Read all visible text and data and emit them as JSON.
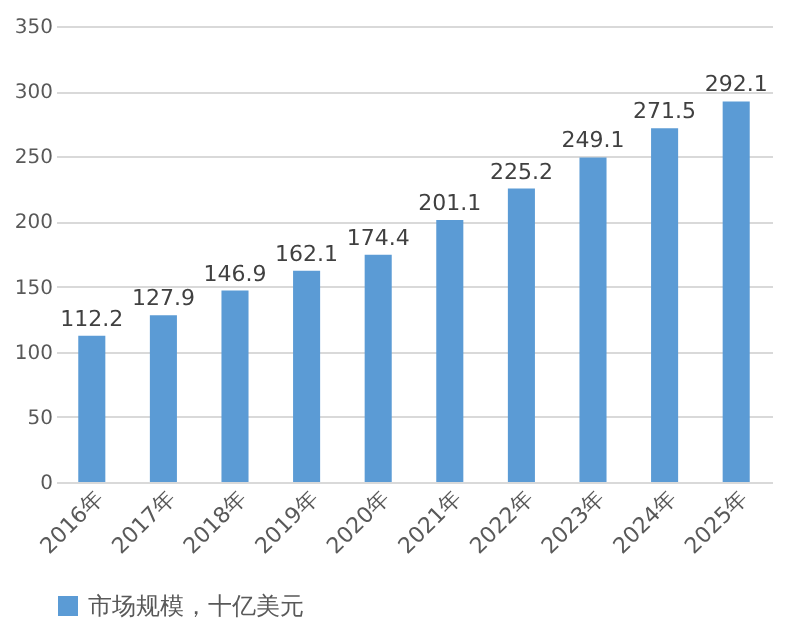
{
  "chart_data": {
    "type": "bar",
    "categories": [
      "2016年",
      "2017年",
      "2018年",
      "2019年",
      "2020年",
      "2021年",
      "2022年",
      "2023年",
      "2024年",
      "2025年"
    ],
    "series": [
      {
        "name": "市场规模，十亿美元",
        "color": "#5b9bd5",
        "values": [
          112.2,
          127.9,
          146.9,
          162.1,
          174.4,
          201.1,
          225.2,
          249.1,
          271.5,
          292.1
        ]
      }
    ],
    "ylim": [
      0,
      350
    ],
    "yticks": [
      0,
      50,
      100,
      150,
      200,
      250,
      300,
      350
    ],
    "grid": "y",
    "legend": "bottom",
    "data_labels": true
  }
}
